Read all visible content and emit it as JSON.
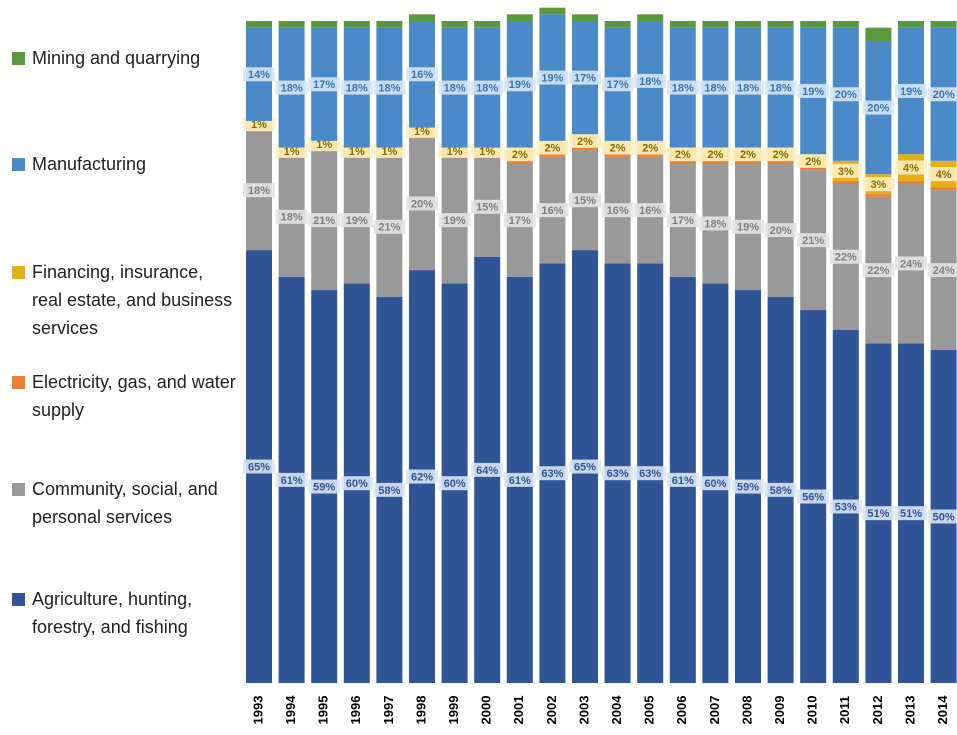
{
  "chart_data": {
    "type": "bar",
    "stacked": true,
    "legend": "left",
    "ylim": [
      0,
      100
    ],
    "categories": [
      "1993",
      "1994",
      "1995",
      "1996",
      "1997",
      "1998",
      "1999",
      "2000",
      "2001",
      "2002",
      "2003",
      "2004",
      "2005",
      "2006",
      "2007",
      "2008",
      "2009",
      "2010",
      "2011",
      "2012",
      "2013",
      "2014"
    ],
    "series": [
      {
        "name": "Agriculture, hunting, forestry, and fishing",
        "color": "#2f5597",
        "values": [
          65,
          61,
          59,
          60,
          58,
          62,
          60,
          64,
          61,
          63,
          65,
          63,
          63,
          61,
          60,
          59,
          58,
          56,
          53,
          51,
          51,
          50
        ],
        "value_labels": [
          "65%",
          "61%",
          "59%",
          "60%",
          "58%",
          "62%",
          "60%",
          "64%",
          "61%",
          "63%",
          "65%",
          "63%",
          "63%",
          "61%",
          "60%",
          "59%",
          "58%",
          "56%",
          "53%",
          "51%",
          "51%",
          "50%"
        ]
      },
      {
        "name": "Community, social, and personal services",
        "color": "#999999",
        "values": [
          18,
          18,
          21,
          19,
          21,
          20,
          19,
          15,
          17,
          16,
          15,
          16,
          16,
          17,
          18,
          19,
          20,
          21,
          22,
          22,
          24,
          24
        ],
        "value_labels": [
          "18%",
          "18%",
          "21%",
          "19%",
          "21%",
          "20%",
          "19%",
          "15%",
          "17%",
          "16%",
          "15%",
          "16%",
          "16%",
          "17%",
          "18%",
          "19%",
          "20%",
          "21%",
          "22%",
          "22%",
          "24%",
          "24%"
        ]
      },
      {
        "name": "Electricity, gas, and water supply",
        "color": "#ed7d31",
        "values": [
          0.4,
          0.4,
          0.4,
          0.4,
          0.4,
          0.4,
          0.4,
          0.4,
          0.4,
          0.4,
          0.4,
          0.4,
          0.4,
          0.4,
          0.4,
          0.4,
          0.4,
          0.4,
          0.4,
          0.4,
          0.4,
          0.4
        ]
      },
      {
        "name": "Financing, insurance, real estate, and business services",
        "color": "#e6b012",
        "values": [
          1,
          1,
          1,
          1,
          1,
          1,
          1,
          1,
          2,
          2,
          2,
          2,
          2,
          2,
          2,
          2,
          2,
          2,
          3,
          3,
          4,
          4
        ],
        "value_labels": [
          "1%",
          "1%",
          "1%",
          "1%",
          "1%",
          "1%",
          "1%",
          "1%",
          "2%",
          "2%",
          "2%",
          "2%",
          "2%",
          "2%",
          "2%",
          "2%",
          "2%",
          "2%",
          "3%",
          "3%",
          "4%",
          "4%"
        ]
      },
      {
        "name": "Manufacturing",
        "color": "#4a8ac8",
        "values": [
          14,
          18,
          17,
          18,
          18,
          16,
          18,
          18,
          19,
          19,
          17,
          17,
          18,
          18,
          18,
          18,
          18,
          19,
          20,
          20,
          19,
          20
        ],
        "value_labels": [
          "14%",
          "18%",
          "17%",
          "18%",
          "18%",
          "16%",
          "18%",
          "18%",
          "19%",
          "19%",
          "17%",
          "17%",
          "18%",
          "18%",
          "18%",
          "18%",
          "18%",
          "19%",
          "20%",
          "20%",
          "19%",
          "20%"
        ]
      },
      {
        "name": "Mining and quarrying",
        "color": "#5b9a3c",
        "values": [
          1,
          1,
          1,
          1,
          1,
          1,
          1,
          1,
          1,
          1,
          1,
          1,
          1,
          1,
          1,
          1,
          1,
          1,
          1,
          2,
          1,
          1
        ]
      }
    ]
  }
}
